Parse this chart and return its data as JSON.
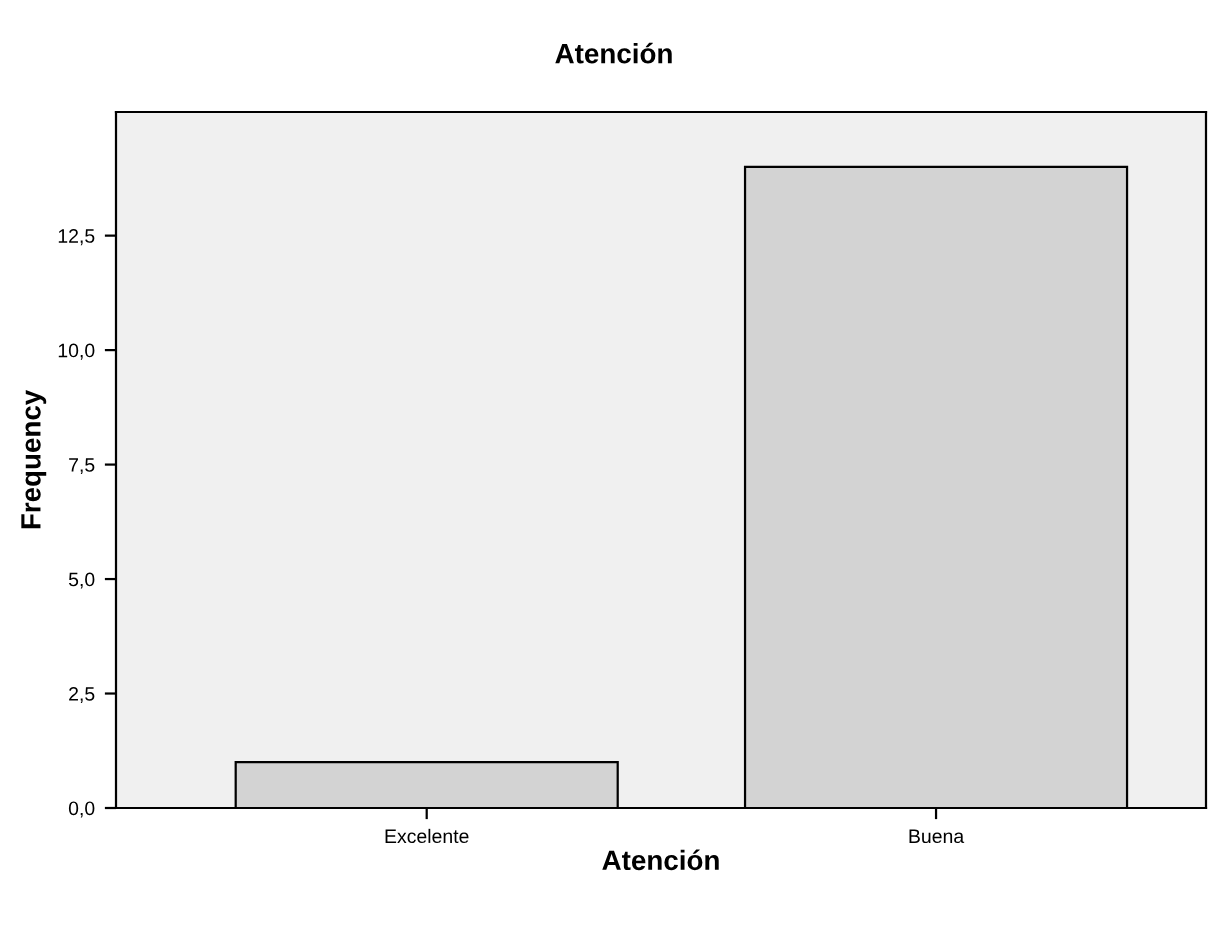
{
  "chart_data": {
    "type": "bar",
    "title": "Atención",
    "xlabel": "Atención",
    "ylabel": "Frequency",
    "categories": [
      "Excelente",
      "Buena"
    ],
    "values": [
      1,
      14
    ],
    "color": "#d3d3d3",
    "ylim": [
      0,
      15.2
    ],
    "yticks": [
      {
        "value": 0,
        "label": "0,0"
      },
      {
        "value": 2.5,
        "label": "2,5"
      },
      {
        "value": 5,
        "label": "5,0"
      },
      {
        "value": 7.5,
        "label": "7,5"
      },
      {
        "value": 10,
        "label": "10,0"
      },
      {
        "value": 12.5,
        "label": "12,5"
      }
    ],
    "grid": false,
    "legend": false
  }
}
